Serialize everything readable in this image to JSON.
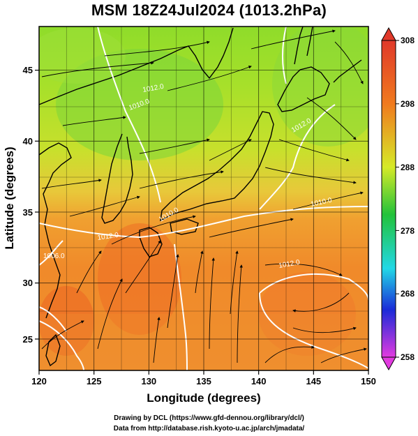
{
  "title": "MSM 18Z24Jul2024 (1013.2hPa)",
  "axes": {
    "xlabel": "Longitude (degrees)",
    "ylabel": "Latitude  (degrees)",
    "xticks": [
      "120",
      "125",
      "130",
      "135",
      "140",
      "145",
      "150"
    ],
    "yticks": [
      "25",
      "30",
      "35",
      "40",
      "45"
    ],
    "xrange": [
      120,
      150
    ],
    "yrange": [
      22.4,
      47.6
    ]
  },
  "colorbar": {
    "ticks": [
      "258",
      "268",
      "278",
      "288",
      "298",
      "308"
    ],
    "range": [
      258,
      308
    ],
    "colors": [
      "#e23be0",
      "#1a2bd8",
      "#22d8e6",
      "#22c23a",
      "#d6ea28",
      "#f07a1e",
      "#e0392a"
    ]
  },
  "contour_labels": [
    "1012.0",
    "1010.0",
    "1012.0",
    "1010.0",
    "1010.0",
    "1012.0",
    "1006.0",
    "1012.0"
  ],
  "credits": {
    "line1": "Drawing by DCL (https://www.gfd-dennou.org/library/dcl/)",
    "line2": "Data from http://database.rish.kyoto-u.ac.jp/arch/jmadata/"
  }
}
